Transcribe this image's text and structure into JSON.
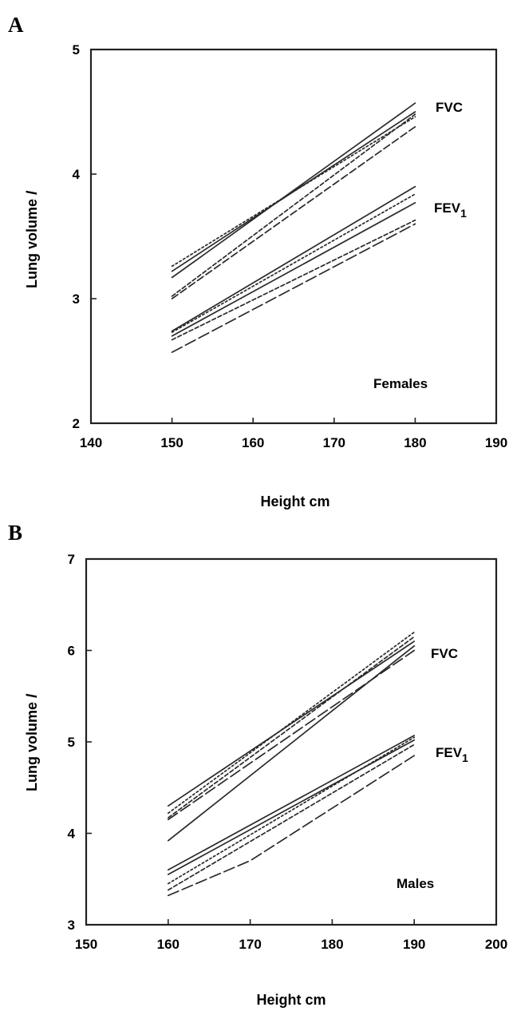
{
  "chart_data": [
    {
      "panel": "A",
      "type": "line",
      "xlabel": "Height cm",
      "ylabel": "Lung volume",
      "ylabel_unit": "l",
      "xlim": [
        140,
        190
      ],
      "ylim": [
        2,
        5
      ],
      "xticks": [
        "140",
        "150",
        "160",
        "170",
        "180",
        "190"
      ],
      "yticks": [
        "2",
        "3",
        "4",
        "5"
      ],
      "annotations": {
        "upper": "FVC",
        "lower": "FEV",
        "lower_sub": "1",
        "group": "Females"
      },
      "series": [
        {
          "group": "FVC",
          "style": "solid",
          "points": [
            [
              150,
              3.17
            ],
            [
              180,
              4.57
            ]
          ]
        },
        {
          "group": "FVC",
          "style": "solid",
          "points": [
            [
              150,
              3.22
            ],
            [
              180,
              4.5
            ]
          ]
        },
        {
          "group": "FVC",
          "style": "dotted",
          "points": [
            [
              150,
              3.26
            ],
            [
              180,
              4.46
            ]
          ]
        },
        {
          "group": "FVC",
          "style": "short-dash",
          "points": [
            [
              150,
              3.02
            ],
            [
              180,
              4.48
            ]
          ]
        },
        {
          "group": "FVC",
          "style": "dash",
          "points": [
            [
              150,
              3.0
            ],
            [
              180,
              4.38
            ]
          ]
        },
        {
          "group": "FEV1",
          "style": "solid",
          "points": [
            [
              150,
              2.74
            ],
            [
              180,
              3.9
            ]
          ]
        },
        {
          "group": "FEV1",
          "style": "solid",
          "points": [
            [
              150,
              2.7
            ],
            [
              180,
              3.77
            ]
          ]
        },
        {
          "group": "FEV1",
          "style": "dotted",
          "points": [
            [
              150,
              2.73
            ],
            [
              180,
              3.84
            ]
          ]
        },
        {
          "group": "FEV1",
          "style": "short-dash",
          "points": [
            [
              150,
              2.67
            ],
            [
              180,
              3.63
            ]
          ]
        },
        {
          "group": "FEV1",
          "style": "long-dash",
          "points": [
            [
              150,
              2.57
            ],
            [
              180,
              3.6
            ]
          ]
        }
      ]
    },
    {
      "panel": "B",
      "type": "line",
      "xlabel": "Height cm",
      "ylabel": "Lung volume",
      "ylabel_unit": "l",
      "xlim": [
        150,
        200
      ],
      "ylim": [
        3,
        7
      ],
      "xticks": [
        "150",
        "160",
        "170",
        "180",
        "190",
        "200"
      ],
      "yticks": [
        "3",
        "4",
        "5",
        "6",
        "7"
      ],
      "annotations": {
        "upper": "FVC",
        "lower": "FEV",
        "lower_sub": "1",
        "group": "Males"
      },
      "series": [
        {
          "group": "FVC",
          "style": "solid",
          "points": [
            [
              160,
              4.3
            ],
            [
              190,
              6.1
            ]
          ]
        },
        {
          "group": "FVC",
          "style": "solid",
          "points": [
            [
              160,
              3.92
            ],
            [
              190,
              6.05
            ]
          ]
        },
        {
          "group": "FVC",
          "style": "dotted",
          "points": [
            [
              160,
              4.22
            ],
            [
              190,
              6.2
            ]
          ]
        },
        {
          "group": "FVC",
          "style": "short-dash",
          "points": [
            [
              160,
              4.17
            ],
            [
              190,
              6.15
            ]
          ]
        },
        {
          "group": "FVC",
          "style": "long-dash",
          "points": [
            [
              160,
              4.15
            ],
            [
              190,
              6.0
            ]
          ]
        },
        {
          "group": "FEV1",
          "style": "solid",
          "points": [
            [
              160,
              3.6
            ],
            [
              190,
              5.07
            ]
          ]
        },
        {
          "group": "FEV1",
          "style": "solid",
          "points": [
            [
              160,
              3.55
            ],
            [
              190,
              5.02
            ]
          ]
        },
        {
          "group": "FEV1",
          "style": "dotted",
          "points": [
            [
              160,
              3.45
            ],
            [
              190,
              5.05
            ]
          ]
        },
        {
          "group": "FEV1",
          "style": "short-dash",
          "points": [
            [
              160,
              3.38
            ],
            [
              190,
              4.97
            ]
          ]
        },
        {
          "group": "FEV1",
          "style": "long-dash",
          "points": [
            [
              160,
              3.32
            ],
            [
              170,
              3.7
            ],
            [
              190,
              4.85
            ]
          ]
        }
      ]
    }
  ]
}
